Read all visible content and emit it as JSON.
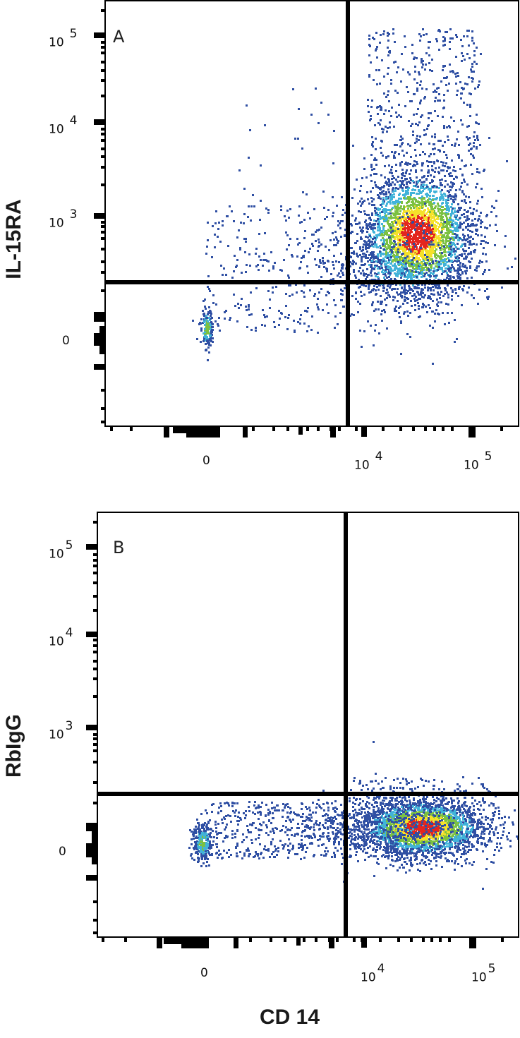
{
  "figure": {
    "x_axis_label": "CD 14",
    "colors": {
      "axis": "#000000",
      "gate": "#000000",
      "density_low": "#2f4fa3",
      "density_mid_low": "#41b3d9",
      "density_mid": "#7cc142",
      "density_mid_high": "#f5e12a",
      "density_high": "#e3261f"
    }
  },
  "panels": [
    {
      "letter": "A",
      "y_axis_label": "IL-15RA",
      "y_ticks": [
        {
          "base": "10",
          "exp": "5"
        },
        {
          "base": "10",
          "exp": "4"
        },
        {
          "base": "10",
          "exp": "3"
        },
        {
          "base": "0",
          "exp": ""
        }
      ],
      "x_ticks": [
        {
          "base": "0",
          "exp": ""
        },
        {
          "base": "10",
          "exp": "4"
        },
        {
          "base": "10",
          "exp": "5"
        }
      ]
    },
    {
      "letter": "B",
      "y_axis_label": "RbIgG",
      "y_ticks": [
        {
          "base": "10",
          "exp": "5"
        },
        {
          "base": "10",
          "exp": "4"
        },
        {
          "base": "10",
          "exp": "3"
        },
        {
          "base": "0",
          "exp": ""
        }
      ],
      "x_ticks": [
        {
          "base": "0",
          "exp": ""
        },
        {
          "base": "10",
          "exp": "4"
        },
        {
          "base": "10",
          "exp": "5"
        }
      ]
    }
  ],
  "chart_data": [
    {
      "type": "scatter",
      "title": "A",
      "plot_style": "flow cytometry density pseudocolor dot plot with quadrant gates",
      "xlabel": "CD 14",
      "ylabel": "IL-15RA",
      "x_scale": "biexponential (logicle)",
      "y_scale": "biexponential (logicle)",
      "x_tick_labels": [
        "0",
        "10^4",
        "10^5"
      ],
      "y_tick_labels": [
        "0",
        "10^3",
        "10^4",
        "10^5"
      ],
      "gates": {
        "x_threshold_approx": 7000,
        "y_threshold_approx": 250
      },
      "populations": [
        {
          "name": "CD14- / IL-15RA- cluster",
          "center_x": 0,
          "center_y": 0,
          "relative_density": "small, green core"
        },
        {
          "name": "CD14+ / IL-15RA+ main cluster",
          "center_x": 35000,
          "center_y": 600,
          "relative_density": "high, red/yellow core"
        },
        {
          "name": "transitional smear",
          "x_range": [
            0,
            10000
          ],
          "y_range": [
            0,
            1000
          ],
          "relative_density": "sparse"
        }
      ],
      "quadrant_summary": "majority of events in upper-right quadrant (CD14+ IL-15RA+)",
      "legend": "none"
    },
    {
      "type": "scatter",
      "title": "B",
      "plot_style": "flow cytometry density pseudocolor dot plot with quadrant gates",
      "xlabel": "CD 14",
      "ylabel": "RbIgG",
      "x_scale": "biexponential (logicle)",
      "y_scale": "biexponential (logicle)",
      "x_tick_labels": [
        "0",
        "10^4",
        "10^5"
      ],
      "y_tick_labels": [
        "0",
        "10^3",
        "10^4",
        "10^5"
      ],
      "gates": {
        "x_threshold_approx": 7000,
        "y_threshold_approx": 250
      },
      "populations": [
        {
          "name": "CD14- / RbIgG- cluster",
          "center_x": 0,
          "center_y": 0,
          "relative_density": "small, cyan/green core"
        },
        {
          "name": "CD14+ / RbIgG- main cluster",
          "center_x": 33000,
          "center_y": 20,
          "relative_density": "high, red/yellow core"
        },
        {
          "name": "transitional smear",
          "x_range": [
            0,
            10000
          ],
          "y_range": [
            -50,
            150
          ],
          "relative_density": "sparse"
        }
      ],
      "quadrant_summary": "majority of events in lower-right quadrant (isotype control negative)",
      "legend": "none"
    }
  ]
}
